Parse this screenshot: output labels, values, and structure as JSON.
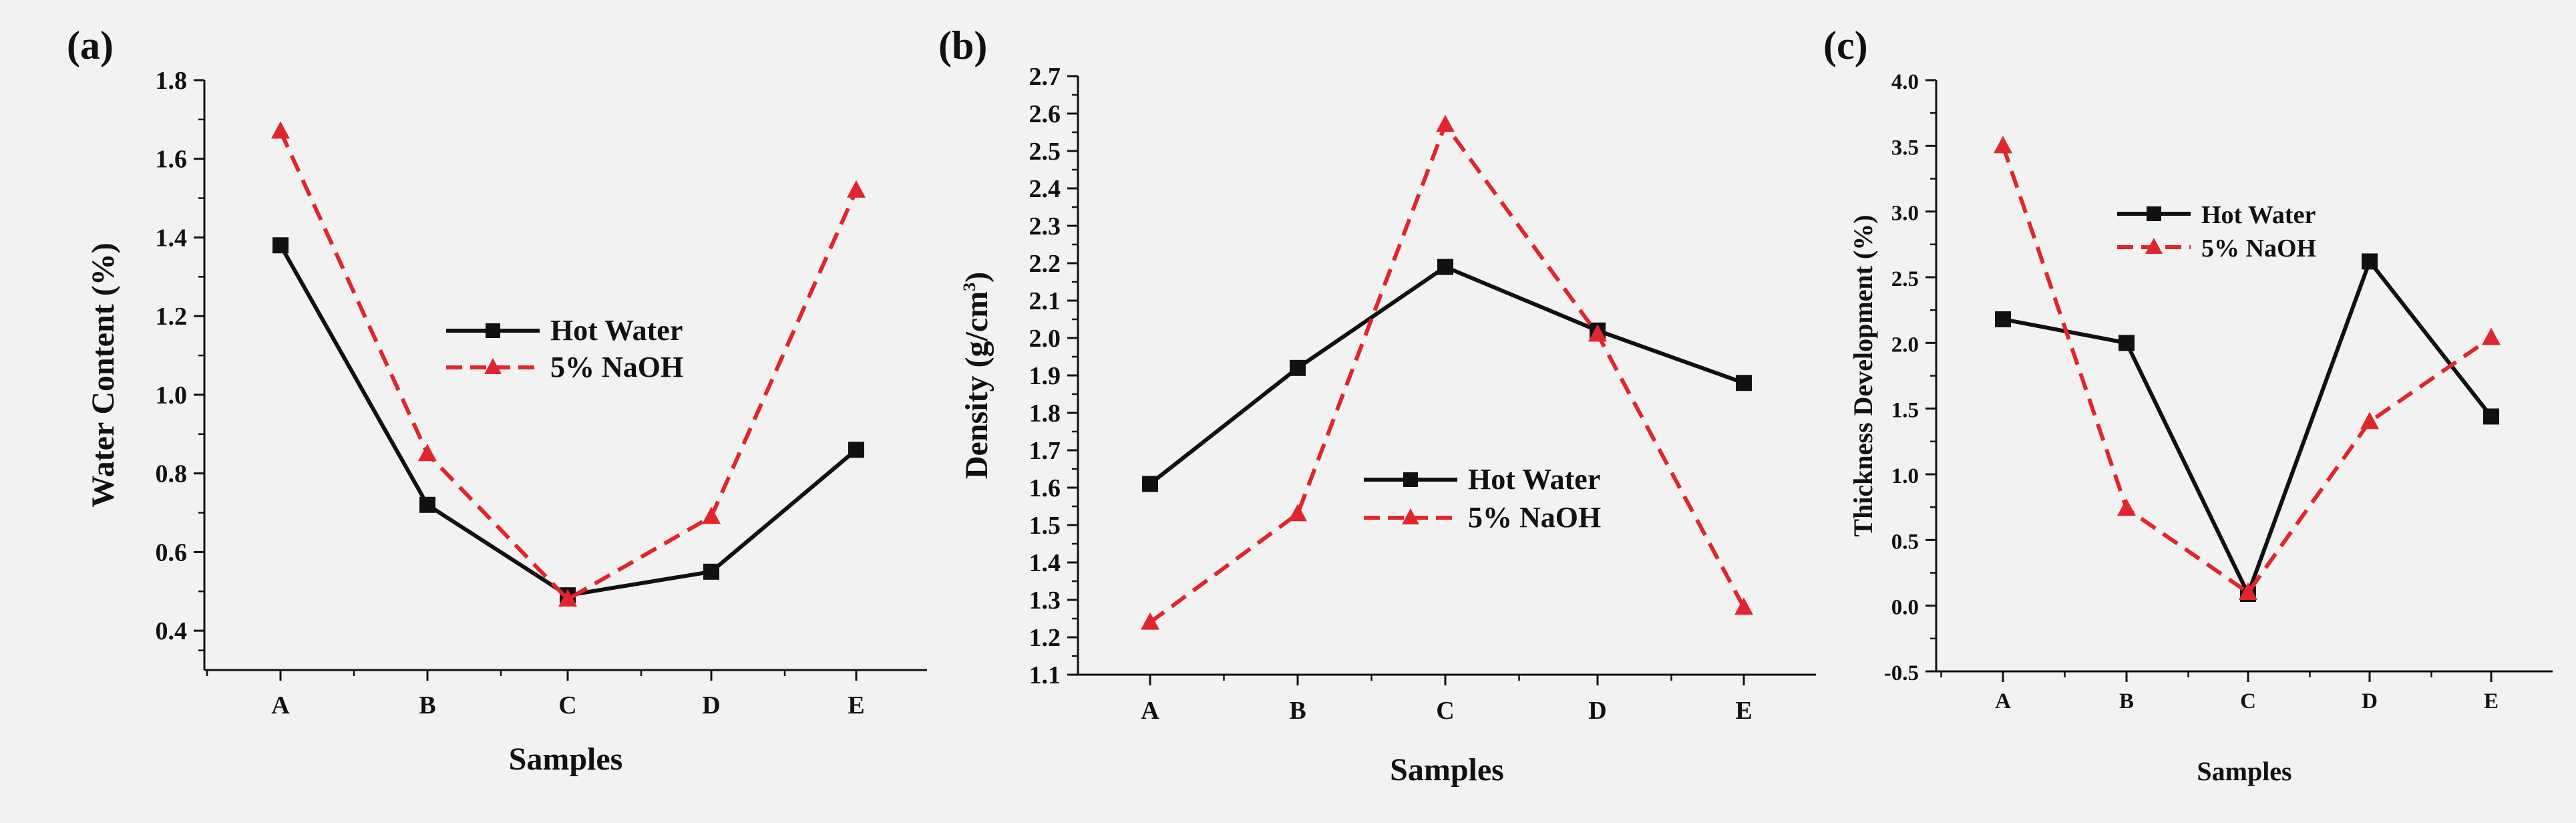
{
  "colors": {
    "hot_water": "#111111",
    "naoh": "#e0262c",
    "axis": "#111111"
  },
  "chart_data": [
    {
      "id": "a",
      "type": "line",
      "panel_label": "(a)",
      "xlabel": "Samples",
      "ylabel": "Water Content (%)",
      "ylabel_sup": "",
      "ylabel_end": "",
      "categories": [
        "A",
        "B",
        "C",
        "D",
        "E"
      ],
      "ylim": [
        0.3,
        1.8
      ],
      "yticks": [
        0.4,
        0.6,
        0.8,
        1.0,
        1.2,
        1.4,
        1.6,
        1.8
      ],
      "tick_decimals": 1,
      "series": [
        {
          "name": "Hot Water",
          "style": "solid",
          "marker": "square",
          "values": [
            1.38,
            0.72,
            0.49,
            0.55,
            0.86
          ]
        },
        {
          "name": "5% NaOH",
          "style": "dashed",
          "marker": "triangle",
          "values": [
            1.67,
            0.85,
            0.48,
            0.69,
            1.52
          ]
        }
      ]
    },
    {
      "id": "b",
      "type": "line",
      "panel_label": "(b)",
      "xlabel": "Samples",
      "ylabel": "Density (g/cm",
      "ylabel_sup": "3",
      "ylabel_end": ")",
      "categories": [
        "A",
        "B",
        "C",
        "D",
        "E"
      ],
      "ylim": [
        1.1,
        2.7
      ],
      "yticks": [
        1.1,
        1.2,
        1.3,
        1.4,
        1.5,
        1.6,
        1.7,
        1.8,
        1.9,
        2.0,
        2.1,
        2.2,
        2.3,
        2.4,
        2.5,
        2.6,
        2.7
      ],
      "tick_decimals": 1,
      "series": [
        {
          "name": "Hot Water",
          "style": "solid",
          "marker": "square",
          "values": [
            1.61,
            1.92,
            2.19,
            2.02,
            1.88
          ]
        },
        {
          "name": "5% NaOH",
          "style": "dashed",
          "marker": "triangle",
          "values": [
            1.24,
            1.53,
            2.57,
            2.01,
            1.28
          ]
        }
      ]
    },
    {
      "id": "c",
      "type": "line",
      "panel_label": "(c)",
      "xlabel": "Samples",
      "ylabel": "Thickness Development (%)",
      "ylabel_sup": "",
      "ylabel_end": "",
      "categories": [
        "A",
        "B",
        "C",
        "D",
        "E"
      ],
      "ylim": [
        -0.5,
        4.0
      ],
      "yticks": [
        -0.5,
        0.0,
        0.5,
        1.0,
        1.5,
        2.0,
        2.5,
        3.0,
        3.5,
        4.0
      ],
      "tick_decimals": 1,
      "series": [
        {
          "name": "Hot Water",
          "style": "solid",
          "marker": "square",
          "values": [
            2.18,
            2.0,
            0.09,
            2.62,
            1.44
          ]
        },
        {
          "name": "5% NaOH",
          "style": "dashed",
          "marker": "triangle",
          "values": [
            3.5,
            0.74,
            0.1,
            1.4,
            2.04
          ]
        }
      ]
    }
  ]
}
